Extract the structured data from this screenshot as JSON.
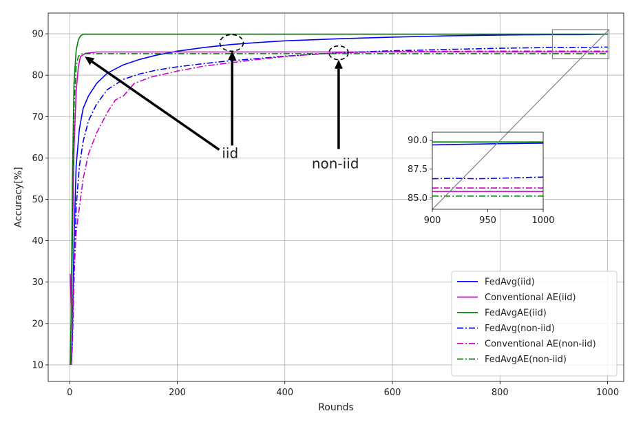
{
  "chart_data": {
    "type": "line",
    "xlabel": "Rounds",
    "ylabel": "Accuracy[%]",
    "xlim": [
      -40,
      1030
    ],
    "ylim": [
      6,
      95
    ],
    "xticks": [
      0,
      200,
      400,
      600,
      800,
      1000
    ],
    "yticks": [
      10,
      20,
      30,
      40,
      50,
      60,
      70,
      80,
      90
    ],
    "grid": true,
    "legend_position": "lower-right",
    "series": [
      {
        "name": "FedAvg(iid)",
        "color": "#0000ff",
        "style": "solid",
        "x": [
          3,
          5,
          8,
          12,
          18,
          25,
          35,
          50,
          70,
          100,
          130,
          160,
          200,
          250,
          300,
          350,
          400,
          500,
          600,
          700,
          800,
          900,
          950,
          1000
        ],
        "y": [
          10,
          18,
          40,
          58,
          67,
          72,
          75,
          78,
          80.5,
          82.5,
          83.8,
          84.8,
          85.8,
          86.7,
          87.4,
          87.9,
          88.3,
          88.8,
          89.2,
          89.5,
          89.7,
          89.8,
          89.8,
          89.9
        ]
      },
      {
        "name": "Conventional AE(iid)",
        "color": "#cc00cc",
        "style": "solid",
        "x": [
          1,
          3,
          5,
          8,
          12,
          16,
          20,
          30,
          50,
          100,
          200,
          400,
          600,
          800,
          1000
        ],
        "y": [
          32,
          22,
          40,
          62,
          76,
          82,
          84.5,
          85.3,
          85.6,
          85.6,
          85.6,
          85.6,
          85.6,
          85.6,
          85.6
        ]
      },
      {
        "name": "FedAvgAE(iid)",
        "color": "#008000",
        "style": "solid",
        "x": [
          1,
          3,
          5,
          8,
          12,
          16,
          20,
          25,
          40,
          100,
          200,
          400,
          600,
          800,
          1000
        ],
        "y": [
          10,
          25,
          55,
          78,
          86,
          88.5,
          89.5,
          89.9,
          89.9,
          89.9,
          89.9,
          89.9,
          89.9,
          89.9,
          89.9
        ]
      },
      {
        "name": "FedAvg(non-iid)",
        "color": "#0000ff",
        "style": "dashdot",
        "x": [
          3,
          5,
          8,
          12,
          18,
          25,
          35,
          50,
          70,
          100,
          130,
          160,
          200,
          250,
          300,
          350,
          400,
          500,
          600,
          700,
          800,
          900,
          950,
          1000
        ],
        "y": [
          10,
          15,
          30,
          48,
          58,
          64,
          69,
          73,
          76.5,
          79,
          80.3,
          81.2,
          82,
          82.8,
          83.5,
          84,
          84.6,
          85.4,
          85.9,
          86.2,
          86.5,
          86.7,
          86.7,
          86.8
        ]
      },
      {
        "name": "Conventional AE(non-iid)",
        "color": "#cc00cc",
        "style": "dashdot",
        "x": [
          3,
          5,
          8,
          12,
          18,
          25,
          35,
          50,
          70,
          85,
          100,
          120,
          150,
          200,
          250,
          300,
          350,
          400,
          450,
          500,
          600,
          800,
          1000
        ],
        "y": [
          10,
          18,
          32,
          42,
          48,
          55,
          61,
          66,
          71,
          74,
          75,
          78,
          79.5,
          81,
          82.2,
          83,
          83.8,
          84.5,
          85,
          85.4,
          85.7,
          85.8,
          85.8
        ]
      },
      {
        "name": "FedAvgAE(non-iid)",
        "color": "#008000",
        "style": "dashdot",
        "x": [
          1,
          3,
          5,
          8,
          12,
          16,
          20,
          30,
          100,
          300,
          500,
          700,
          1000
        ],
        "y": [
          10,
          22,
          48,
          72,
          82,
          84.5,
          85.1,
          85.2,
          85.2,
          85.2,
          85.2,
          85.2,
          85.2
        ]
      }
    ],
    "inset": {
      "xlim": [
        900,
        1000
      ],
      "ylim": [
        84.0,
        90.7
      ],
      "xticks": [
        900,
        950,
        1000
      ],
      "yticks": [
        85.0,
        87.5,
        90.0
      ],
      "ytick_labels": [
        "85.0",
        "87.5",
        "90.0"
      ],
      "series_values": [
        {
          "ref": "FedAvg(iid)",
          "x": [
            900,
            930,
            960,
            1000
          ],
          "y": [
            89.6,
            89.65,
            89.7,
            89.75
          ]
        },
        {
          "ref": "Conventional AE(iid)",
          "x": [
            900,
            1000
          ],
          "y": [
            85.55,
            85.55
          ]
        },
        {
          "ref": "FedAvgAE(iid)",
          "x": [
            900,
            1000
          ],
          "y": [
            89.85,
            89.85
          ]
        },
        {
          "ref": "FedAvg(non-iid)",
          "x": [
            900,
            920,
            940,
            960,
            980,
            1000
          ],
          "y": [
            86.65,
            86.7,
            86.65,
            86.7,
            86.75,
            86.8
          ]
        },
        {
          "ref": "Conventional AE(non-iid)",
          "x": [
            900,
            1000
          ],
          "y": [
            85.85,
            85.85
          ]
        },
        {
          "ref": "FedAvgAE(non-iid)",
          "x": [
            900,
            1000
          ],
          "y": [
            85.15,
            85.15
          ]
        }
      ]
    },
    "zoom_region": {
      "x": [
        900,
        1000
      ],
      "y": [
        84,
        91
      ]
    },
    "annotations": [
      {
        "text": "iid",
        "text_at": [
          283,
          60
        ],
        "arrows_to": [
          [
            28,
            84.5
          ],
          [
            302,
            87.8
          ]
        ],
        "ellipse_at": [
          301,
          87.8
        ]
      },
      {
        "text": "non-iid",
        "text_at": [
          450,
          57.5
        ],
        "arrows_to": [
          [
            500,
            85.6
          ]
        ],
        "ellipse_at": [
          500,
          85.4
        ]
      }
    ]
  }
}
